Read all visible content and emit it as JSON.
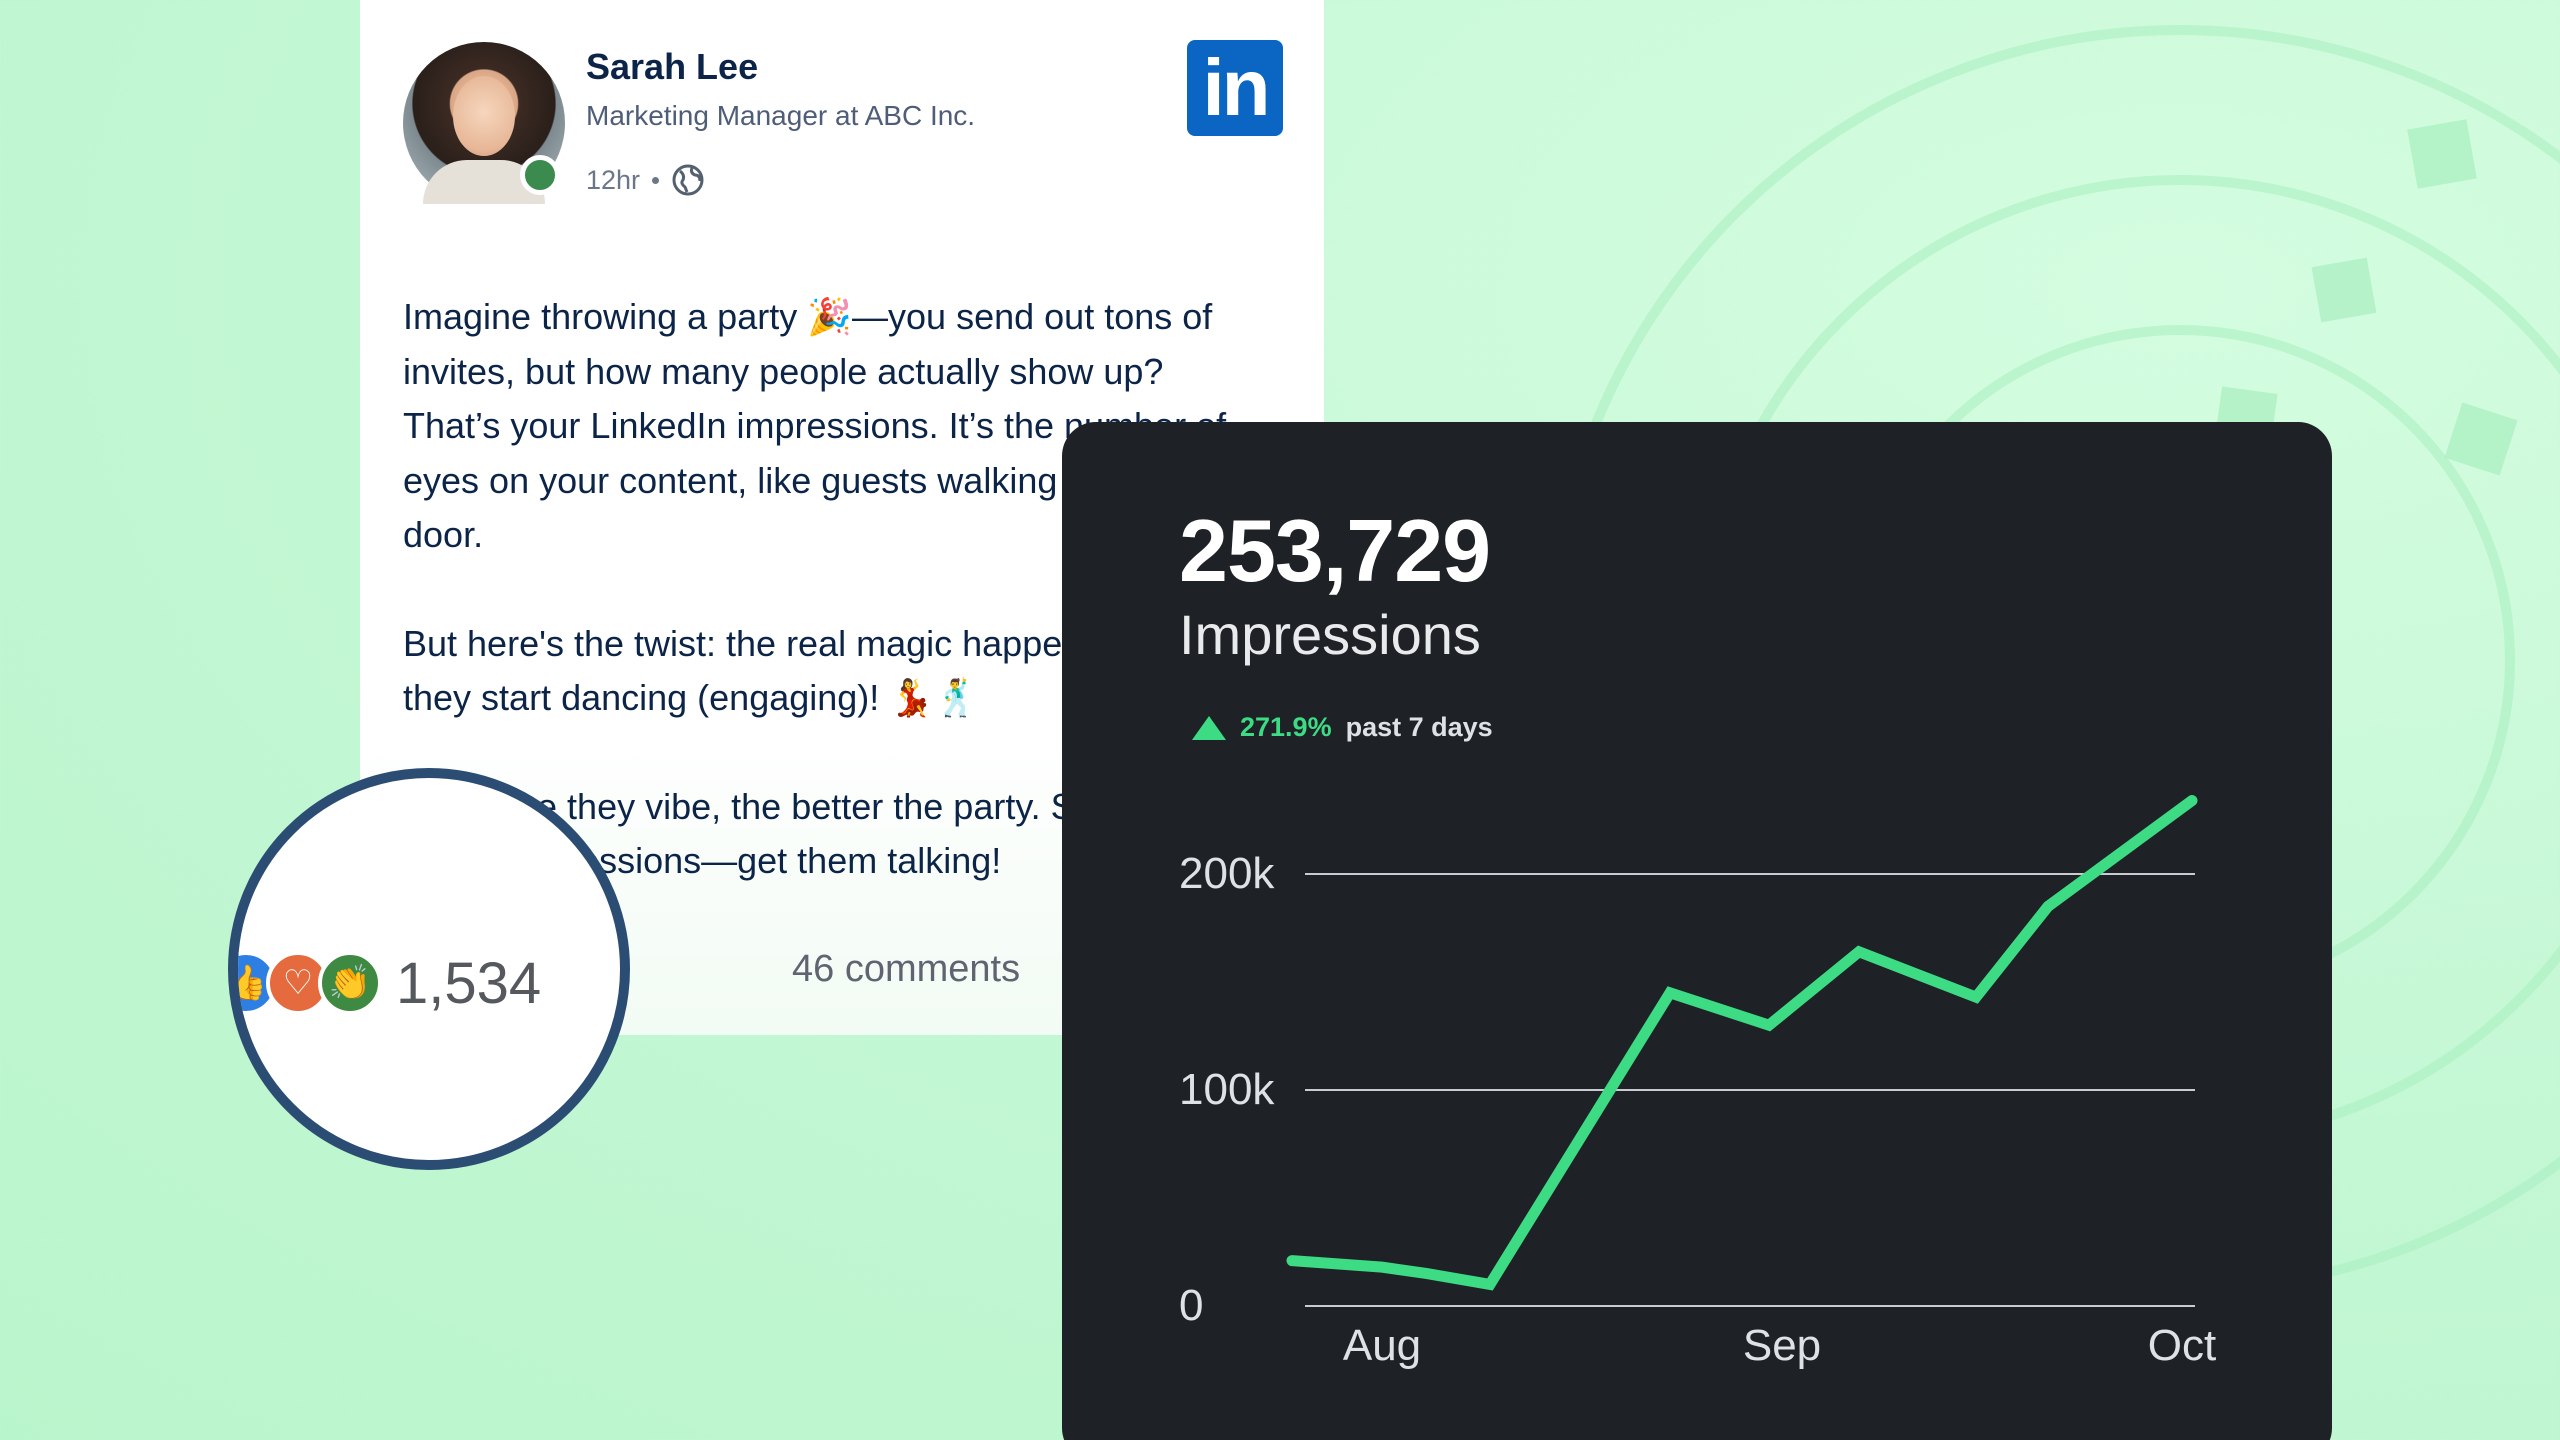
{
  "post": {
    "author_name": "Sarah Lee",
    "author_title": "Marketing Manager at ABC Inc.",
    "time_ago": "12hr",
    "visibility_icon": "globe-icon",
    "brand_logo_text": "in",
    "paragraphs": [
      [
        "Imagine throwing a party 🎉—you send out tons of",
        "invites, but how many people actually show up?",
        "That’s your LinkedIn impressions. It’s the number of",
        "eyes on your content, like guests walking through the",
        "door."
      ],
      [
        "But here's the twist: the real magic happens when",
        "they start dancing (engaging)! 💃🕺"
      ],
      [
        "The more they vibe, the better the party. So, don't just",
        "chase impressions—get them talking!"
      ]
    ],
    "comments": "46 comments",
    "colors": {
      "brand": "#0a66c2",
      "text": "#0b2447",
      "online": "#3b8a4e"
    }
  },
  "reactions": {
    "icons": [
      "like-icon",
      "love-icon",
      "celebrate-icon"
    ],
    "total": "1,534",
    "ring_color": "#2c4d73"
  },
  "stats": {
    "value": "253,729",
    "label": "Impressions",
    "delta_pct": "271.9%",
    "delta_period": "past 7 days",
    "accent": "#3ddc84"
  },
  "chart_data": {
    "type": "line",
    "title": "",
    "xlabel": "",
    "ylabel": "",
    "ylim": [
      0,
      200000
    ],
    "y_ticks": [
      {
        "value": 0,
        "label": "0"
      },
      {
        "value": 100000,
        "label": "100k"
      },
      {
        "value": 200000,
        "label": "200k"
      }
    ],
    "x_labels": [
      "Aug",
      "Sep",
      "Oct"
    ],
    "grid": true,
    "series": [
      {
        "values": [
          21000,
          18000,
          15000,
          10000,
          145000,
          130000,
          164000,
          143000,
          185000,
          234000
        ]
      }
    ]
  }
}
